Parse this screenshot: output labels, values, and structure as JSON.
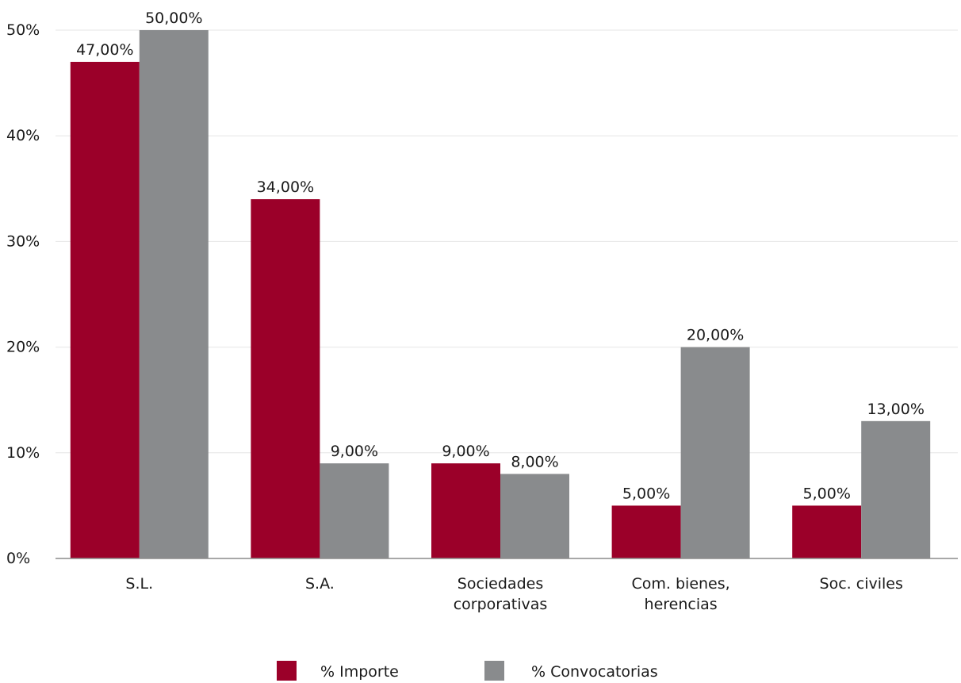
{
  "chart_data": {
    "type": "bar",
    "categories": [
      [
        "S.L."
      ],
      [
        "S.A."
      ],
      [
        "Sociedades",
        "corporativas"
      ],
      [
        "Com. bienes,",
        "herencias"
      ],
      [
        "Soc. civiles"
      ]
    ],
    "series": [
      {
        "name": "% Importe",
        "color": "#9b0029",
        "values": [
          47,
          34,
          9,
          5,
          5
        ],
        "labels": [
          "47,00%",
          "34,00%",
          "9,00%",
          "5,00%",
          "5,00%"
        ]
      },
      {
        "name": "% Convocatorias",
        "color": "#898b8d",
        "values": [
          50,
          9,
          8,
          20,
          13
        ],
        "labels": [
          "50,00%",
          "9,00%",
          "8,00%",
          "20,00%",
          "13,00%"
        ]
      }
    ],
    "yticks": [
      "0%",
      "10%",
      "20%",
      "30%",
      "40%",
      "50%"
    ],
    "ylim": [
      0,
      50
    ],
    "grid": true,
    "legend": "bottom"
  }
}
